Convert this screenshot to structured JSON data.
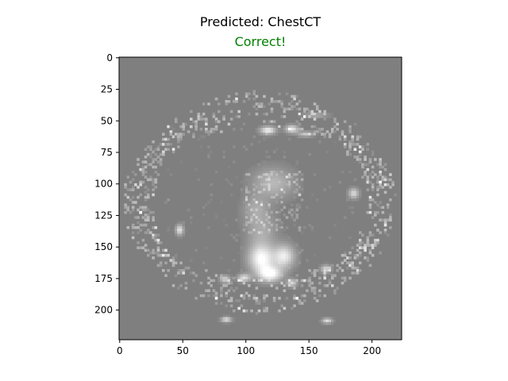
{
  "figure": {
    "title": "Predicted: ChestCT",
    "subtitle": "Correct!",
    "subtitle_color": "#008000",
    "background_gray": "#7f7f7f"
  },
  "chart_data": {
    "type": "heatmap",
    "title": "Predicted: ChestCT",
    "subtitle": "Correct!",
    "xlabel": "",
    "ylabel": "",
    "xlim": [
      -0.5,
      223.5
    ],
    "ylim": [
      223.5,
      -0.5
    ],
    "x_ticks": [
      0,
      50,
      100,
      150,
      200
    ],
    "y_ticks": [
      0,
      25,
      50,
      75,
      100,
      125,
      150,
      175,
      200
    ],
    "colormap": "gray",
    "grid": false,
    "image_description_points": {
      "ring_center": [
        112,
        115
      ],
      "ring_radius_x": [
        85,
        108
      ],
      "ring_radius_y": [
        60,
        88
      ],
      "heart_blobs": [
        [
          113,
          160,
          10,
          11,
          1.0
        ],
        [
          120,
          172,
          9,
          6,
          0.95
        ],
        [
          131,
          158,
          8,
          9,
          0.85
        ],
        [
          122,
          100,
          16,
          12,
          0.45
        ],
        [
          113,
          138,
          12,
          14,
          0.35
        ],
        [
          108,
          120,
          10,
          10,
          0.3
        ]
      ],
      "bright_spots": [
        [
          118,
          58,
          6,
          3,
          0.9
        ],
        [
          137,
          57,
          5,
          3,
          0.85
        ],
        [
          48,
          137,
          3,
          4,
          0.8
        ],
        [
          186,
          108,
          4,
          4,
          0.7
        ],
        [
          99,
          175,
          5,
          3,
          0.75
        ],
        [
          84,
          176,
          4,
          3,
          0.65
        ],
        [
          164,
          168,
          4,
          3,
          0.7
        ],
        [
          137,
          179,
          4,
          3,
          0.7
        ],
        [
          156,
          46,
          10,
          2,
          0.35
        ],
        [
          85,
          208,
          4,
          2,
          0.8
        ],
        [
          165,
          209,
          4,
          2,
          0.75
        ],
        [
          148,
          61,
          6,
          2,
          0.6
        ]
      ]
    }
  }
}
